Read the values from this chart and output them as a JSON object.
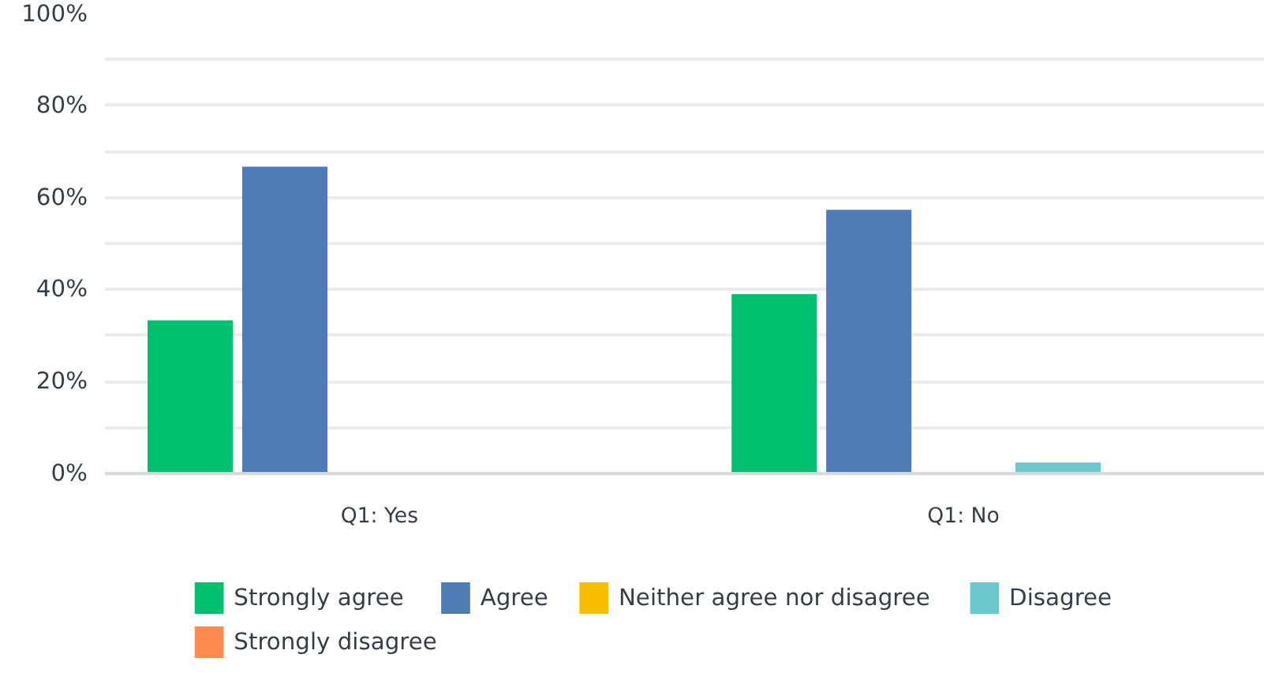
{
  "chart_data": {
    "type": "bar",
    "categories": [
      "Q1: Yes",
      "Q1: No"
    ],
    "series": [
      {
        "name": "Strongly agree",
        "color": "#00bf6f",
        "values": [
          33.3,
          39.0
        ]
      },
      {
        "name": "Agree",
        "color": "#507cb6",
        "values": [
          66.7,
          57.3
        ]
      },
      {
        "name": "Neither agree nor disagree",
        "color": "#f9be00",
        "values": [
          0,
          0
        ]
      },
      {
        "name": "Disagree",
        "color": "#6bc8cd",
        "values": [
          0,
          2.4
        ]
      },
      {
        "name": "Strongly disagree",
        "color": "#ff8b4f",
        "values": [
          0,
          0
        ]
      }
    ],
    "ylim": [
      0,
      100
    ],
    "yticks": [
      {
        "value": 0,
        "label": "0%"
      },
      {
        "value": 10,
        "label": null
      },
      {
        "value": 20,
        "label": "20%"
      },
      {
        "value": 30,
        "label": null
      },
      {
        "value": 40,
        "label": "40%"
      },
      {
        "value": 50,
        "label": null
      },
      {
        "value": 60,
        "label": "60%"
      },
      {
        "value": 70,
        "label": null
      },
      {
        "value": 80,
        "label": "80%"
      },
      {
        "value": 90,
        "label": null
      },
      {
        "value": 100,
        "label": "100%"
      }
    ],
    "grid": "y",
    "legend": "bottom"
  }
}
